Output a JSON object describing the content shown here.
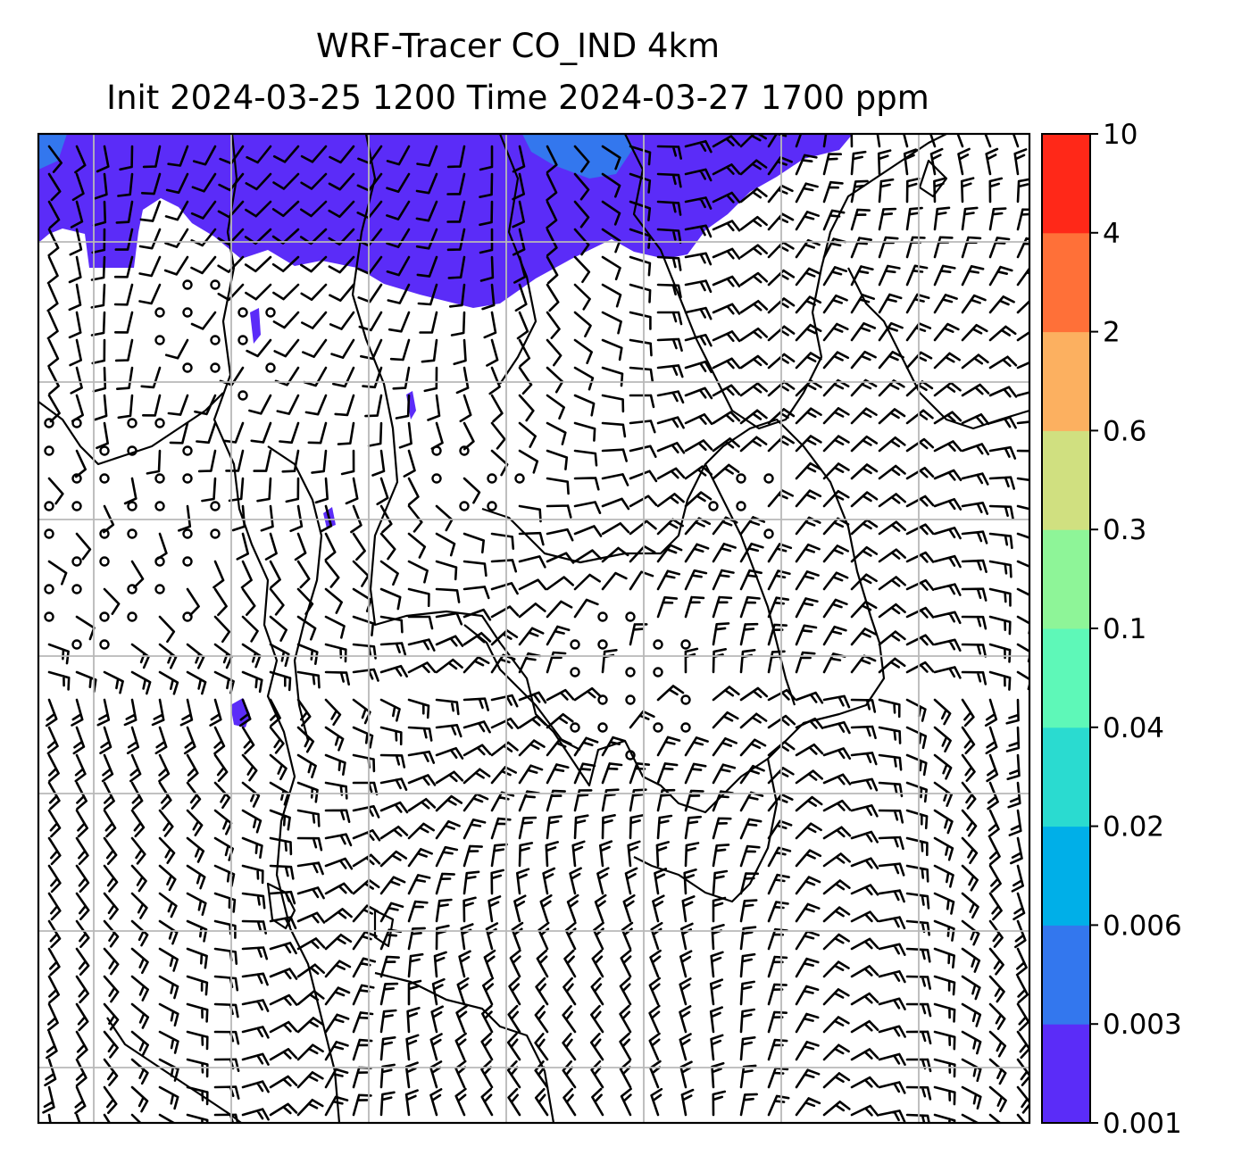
{
  "title": {
    "line1": "WRF-Tracer CO_IND 4km",
    "line2": "Init 2024-03-25 1200 Time 2024-03-27 1700 ppm"
  },
  "colorbar": {
    "levels": [
      "0.001",
      "0.003",
      "0.006",
      "0.02",
      "0.04",
      "0.1",
      "0.3",
      "0.6",
      "2",
      "4",
      "10"
    ],
    "colors": [
      "#5b2cf8",
      "#3377ee",
      "#00afe8",
      "#2adbd0",
      "#5ef8b8",
      "#8ef598",
      "#d0e080",
      "#fcb060",
      "#ff7038",
      "#ff2818"
    ]
  },
  "map": {
    "grid": "on",
    "wind_barbs": "on",
    "coastlines": "on",
    "tracer_color": "#5b2cf8",
    "tracer_color_secondary": "#3377ee"
  }
}
